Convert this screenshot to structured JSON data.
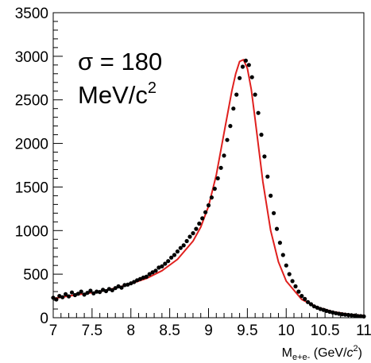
{
  "chart_data": {
    "type": "scatter",
    "title": "",
    "annotation": {
      "line1": "σ = 180",
      "line2_main": "MeV/c",
      "line2_sup": "2"
    },
    "xlabel": {
      "main": "M",
      "sub": "e+e-",
      "unit_open": " (GeV/",
      "unit_c": "c",
      "unit_sup": "2",
      "unit_close": ")"
    },
    "xlim": [
      7,
      11
    ],
    "ylim": [
      0,
      3500
    ],
    "xticks": [
      "7",
      "7.5",
      "8",
      "8.5",
      "9",
      "9.5",
      "10",
      "10.5",
      "11"
    ],
    "yticks": [
      "0",
      "500",
      "1000",
      "1500",
      "2000",
      "2500",
      "3000",
      "3500"
    ],
    "grid": false,
    "fit_color": "#e0201e",
    "marker_color": "#000000",
    "fit": {
      "name": "",
      "x": [
        7.0,
        7.2,
        7.4,
        7.6,
        7.8,
        8.0,
        8.2,
        8.4,
        8.6,
        8.8,
        8.9,
        9.0,
        9.1,
        9.2,
        9.3,
        9.35,
        9.4,
        9.45,
        9.5,
        9.55,
        9.6,
        9.7,
        9.8,
        9.9,
        10.0,
        10.2,
        10.4,
        10.6,
        10.8,
        11.0
      ],
      "y": [
        220,
        250,
        275,
        300,
        340,
        390,
        450,
        540,
        670,
        880,
        1040,
        1280,
        1640,
        2120,
        2600,
        2800,
        2940,
        2960,
        2860,
        2620,
        2280,
        1560,
        1000,
        640,
        420,
        210,
        120,
        70,
        40,
        25
      ]
    },
    "points": {
      "x": [
        7.0,
        7.04,
        7.08,
        7.12,
        7.16,
        7.2,
        7.24,
        7.28,
        7.32,
        7.36,
        7.4,
        7.44,
        7.48,
        7.52,
        7.56,
        7.6,
        7.64,
        7.68,
        7.72,
        7.76,
        7.8,
        7.84,
        7.88,
        7.92,
        7.96,
        8.0,
        8.04,
        8.08,
        8.12,
        8.16,
        8.2,
        8.24,
        8.28,
        8.32,
        8.36,
        8.4,
        8.44,
        8.48,
        8.52,
        8.56,
        8.6,
        8.64,
        8.68,
        8.72,
        8.76,
        8.8,
        8.84,
        8.88,
        8.92,
        8.96,
        9.0,
        9.04,
        9.08,
        9.12,
        9.16,
        9.2,
        9.24,
        9.28,
        9.32,
        9.36,
        9.4,
        9.44,
        9.48,
        9.52,
        9.56,
        9.6,
        9.64,
        9.68,
        9.72,
        9.76,
        9.8,
        9.84,
        9.88,
        9.92,
        9.96,
        10.0,
        10.04,
        10.08,
        10.12,
        10.16,
        10.2,
        10.24,
        10.28,
        10.32,
        10.36,
        10.4,
        10.44,
        10.48,
        10.52,
        10.56,
        10.6,
        10.64,
        10.68,
        10.72,
        10.76,
        10.8,
        10.84,
        10.88,
        10.92,
        10.96,
        11.0
      ],
      "y": [
        230,
        210,
        250,
        235,
        270,
        245,
        290,
        260,
        275,
        300,
        265,
        285,
        310,
        280,
        300,
        295,
        320,
        305,
        330,
        315,
        340,
        360,
        345,
        375,
        380,
        395,
        410,
        430,
        445,
        460,
        470,
        500,
        520,
        540,
        575,
        590,
        620,
        650,
        690,
        720,
        760,
        800,
        830,
        880,
        930,
        970,
        1020,
        1080,
        1140,
        1210,
        1290,
        1380,
        1480,
        1600,
        1720,
        1860,
        2040,
        2200,
        2400,
        2560,
        2750,
        2880,
        2950,
        2900,
        2760,
        2560,
        2350,
        2100,
        1850,
        1620,
        1400,
        1200,
        1020,
        860,
        720,
        600,
        500,
        420,
        360,
        300,
        250,
        215,
        180,
        155,
        130,
        115,
        100,
        90,
        78,
        68,
        60,
        52,
        46,
        40,
        36,
        32,
        28,
        24,
        20,
        18,
        15
      ]
    }
  }
}
